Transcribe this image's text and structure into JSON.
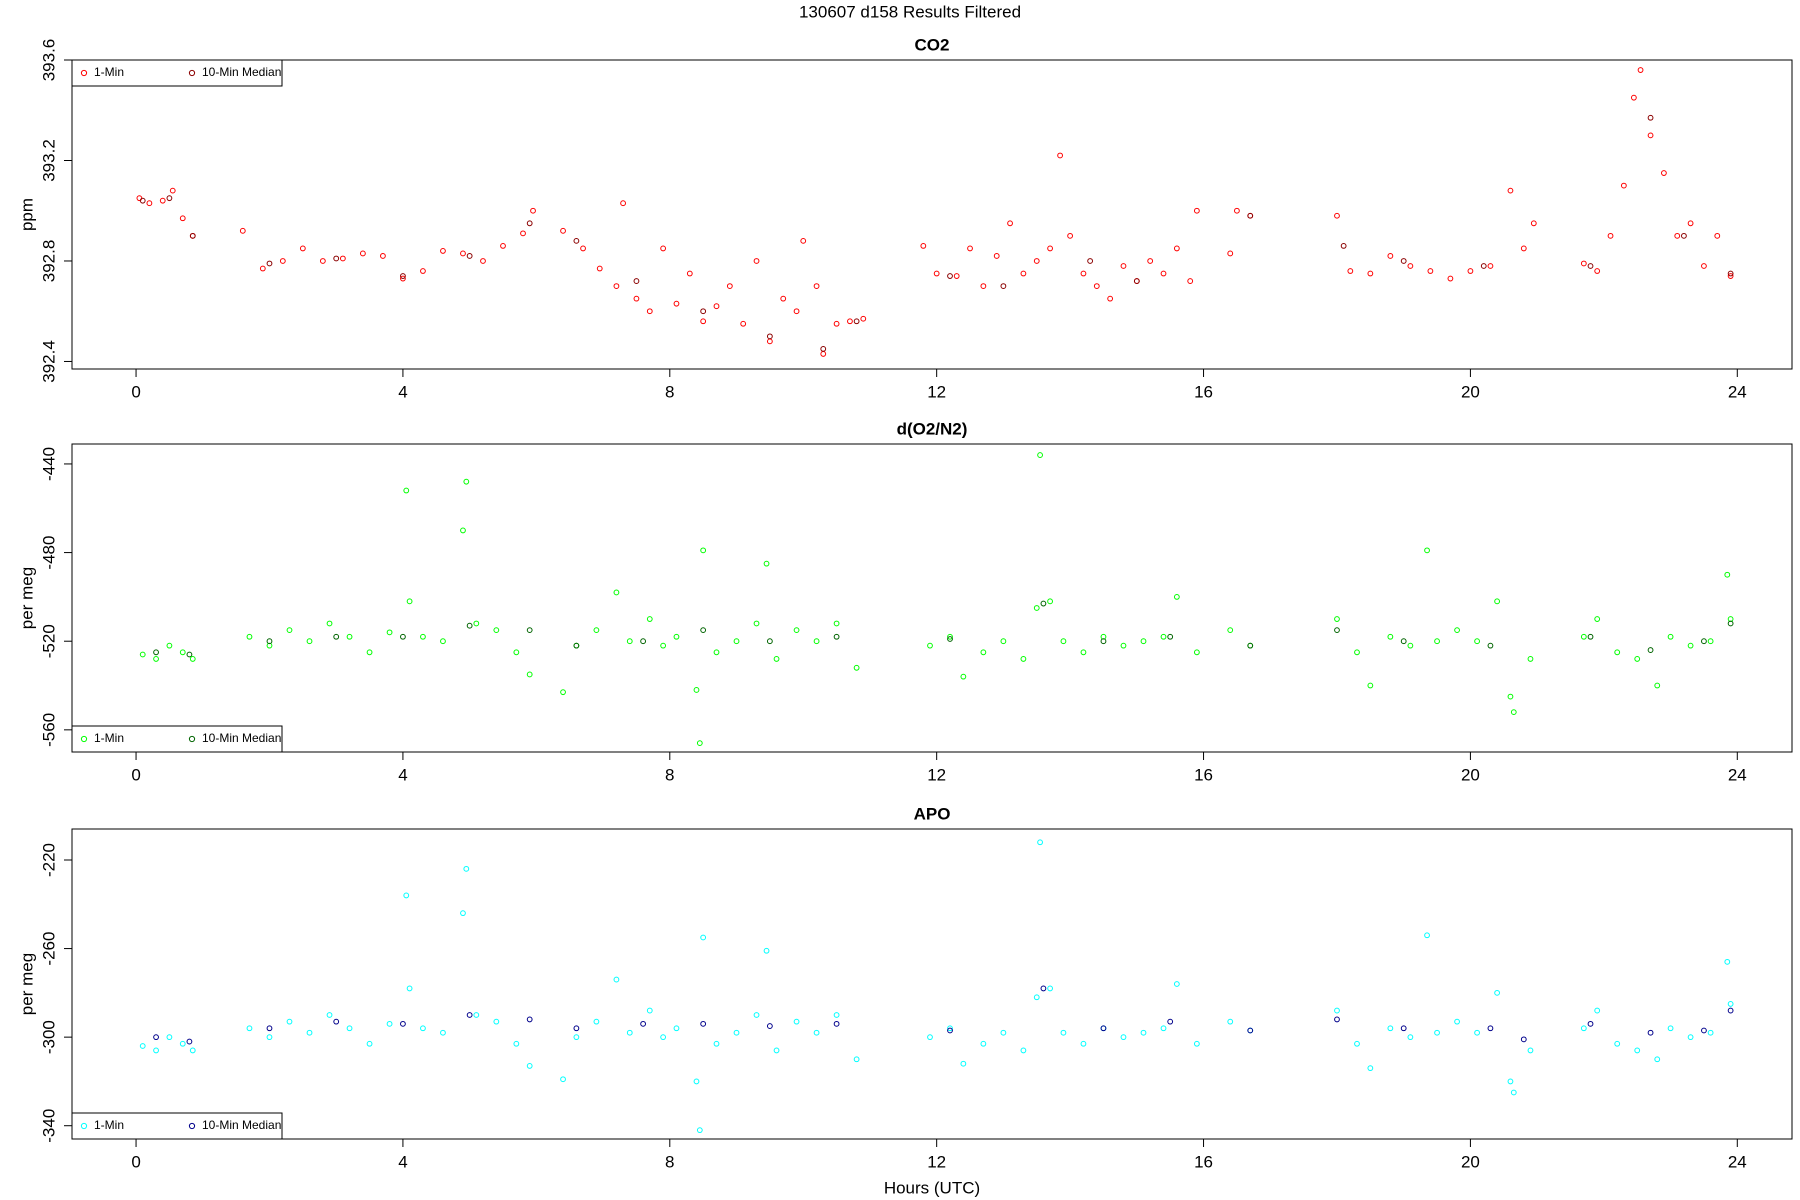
{
  "title": "130607   d158   Results Filtered",
  "chart_data": [
    {
      "type": "scatter",
      "title": "CO2",
      "ylabel": "ppm",
      "xlim": [
        -0.96,
        24.82
      ],
      "xticks": [
        0,
        4,
        8,
        12,
        16,
        20,
        24
      ],
      "ylim": [
        392.37,
        393.6
      ],
      "yticks": [
        392.4,
        392.8,
        393.2,
        393.6
      ],
      "legend": "topleft",
      "series": [
        {
          "name": "1-Min",
          "color": "#ff0000",
          "x": [
            0.05,
            0.2,
            0.4,
            0.55,
            0.7,
            0.85,
            1.6,
            1.9,
            2.2,
            2.5,
            2.8,
            3.1,
            3.4,
            3.7,
            4.0,
            4.3,
            4.6,
            4.9,
            5.2,
            5.5,
            5.8,
            5.95,
            6.4,
            6.7,
            6.95,
            7.2,
            7.3,
            7.5,
            7.7,
            7.9,
            8.1,
            8.3,
            8.5,
            8.7,
            8.9,
            9.1,
            9.3,
            9.5,
            9.7,
            9.9,
            10.0,
            10.2,
            10.3,
            10.5,
            10.7,
            10.9,
            11.8,
            12.0,
            12.3,
            12.5,
            12.7,
            12.9,
            13.1,
            13.3,
            13.5,
            13.7,
            13.85,
            14.0,
            14.2,
            14.4,
            14.6,
            14.8,
            15.0,
            15.2,
            15.4,
            15.6,
            15.8,
            15.9,
            16.4,
            16.5,
            16.7,
            18.0,
            18.2,
            18.5,
            18.8,
            19.1,
            19.4,
            19.7,
            20.0,
            20.3,
            20.6,
            20.8,
            20.95,
            21.7,
            21.9,
            22.1,
            22.3,
            22.45,
            22.55,
            22.7,
            22.9,
            23.1,
            23.3,
            23.5,
            23.7,
            23.9
          ],
          "values": [
            393.05,
            393.03,
            393.04,
            393.08,
            392.97,
            392.9,
            392.92,
            392.77,
            392.8,
            392.85,
            392.8,
            392.81,
            392.83,
            392.82,
            392.73,
            392.76,
            392.84,
            392.83,
            392.8,
            392.86,
            392.91,
            393.0,
            392.92,
            392.85,
            392.77,
            392.7,
            393.03,
            392.65,
            392.6,
            392.85,
            392.63,
            392.75,
            392.56,
            392.62,
            392.7,
            392.55,
            392.8,
            392.48,
            392.65,
            392.6,
            392.88,
            392.7,
            392.43,
            392.55,
            392.56,
            392.57,
            392.86,
            392.75,
            392.74,
            392.85,
            392.7,
            392.82,
            392.95,
            392.75,
            392.8,
            392.85,
            393.22,
            392.9,
            392.75,
            392.7,
            392.65,
            392.78,
            392.72,
            392.8,
            392.75,
            392.85,
            392.72,
            393.0,
            392.83,
            393.0,
            392.98,
            392.98,
            392.76,
            392.75,
            392.82,
            392.78,
            392.76,
            392.73,
            392.76,
            392.78,
            393.08,
            392.85,
            392.95,
            392.79,
            392.76,
            392.9,
            393.1,
            393.45,
            393.56,
            393.3,
            393.15,
            392.9,
            392.95,
            392.78,
            392.9,
            392.74
          ]
        },
        {
          "name": "10-Min Median",
          "color": "#8b0000",
          "x": [
            0.1,
            0.5,
            0.85,
            2,
            3,
            4,
            5,
            5.9,
            6.6,
            7.5,
            8.5,
            9.5,
            10.3,
            10.8,
            12.2,
            13,
            14.3,
            15,
            16.7,
            18.1,
            19,
            20.2,
            21.8,
            22.7,
            23.2,
            23.9
          ],
          "values": [
            393.04,
            393.05,
            392.9,
            392.79,
            392.81,
            392.74,
            392.82,
            392.95,
            392.88,
            392.72,
            392.6,
            392.5,
            392.45,
            392.56,
            392.74,
            392.7,
            392.8,
            392.72,
            392.98,
            392.86,
            392.8,
            392.78,
            392.78,
            393.37,
            392.9,
            392.75
          ]
        }
      ]
    },
    {
      "type": "scatter",
      "title": "d(O2/N2)",
      "ylabel": "per meg",
      "xlim": [
        -0.96,
        24.82
      ],
      "xticks": [
        0,
        4,
        8,
        12,
        16,
        20,
        24
      ],
      "ylim": [
        -570,
        -431
      ],
      "yticks": [
        -560,
        -520,
        -480,
        -440
      ],
      "legend": "bottomleft",
      "series": [
        {
          "name": "1-Min",
          "color": "#00ff00",
          "x": [
            0.1,
            0.3,
            0.5,
            0.7,
            0.85,
            1.7,
            2.0,
            2.3,
            2.6,
            2.9,
            3.2,
            3.5,
            3.8,
            4.05,
            4.1,
            4.3,
            4.6,
            4.9,
            4.95,
            5.1,
            5.4,
            5.7,
            5.9,
            6.4,
            6.6,
            6.9,
            7.2,
            7.4,
            7.7,
            7.9,
            8.1,
            8.4,
            8.45,
            8.5,
            8.7,
            9.0,
            9.3,
            9.45,
            9.6,
            9.9,
            10.2,
            10.5,
            10.8,
            11.9,
            12.2,
            12.4,
            12.7,
            13.0,
            13.3,
            13.5,
            13.55,
            13.7,
            13.9,
            14.2,
            14.5,
            14.8,
            15.1,
            15.4,
            15.6,
            15.9,
            16.4,
            16.7,
            18.0,
            18.3,
            18.5,
            18.8,
            19.1,
            19.35,
            19.5,
            19.8,
            20.1,
            20.4,
            20.6,
            20.65,
            20.9,
            21.7,
            21.9,
            22.2,
            22.5,
            22.8,
            23.0,
            23.3,
            23.6,
            23.85,
            23.9
          ],
          "values": [
            -526,
            -528,
            -522,
            -525,
            -528,
            -518,
            -522,
            -515,
            -520,
            -512,
            -518,
            -525,
            -516,
            -452,
            -502,
            -518,
            -520,
            -470,
            -448,
            -512,
            -515,
            -525,
            -535,
            -543,
            -522,
            -515,
            -498,
            -520,
            -510,
            -522,
            -518,
            -542,
            -566,
            -479,
            -525,
            -520,
            -512,
            -485,
            -528,
            -515,
            -520,
            -512,
            -532,
            -522,
            -518,
            -536,
            -525,
            -520,
            -528,
            -505,
            -436,
            -502,
            -520,
            -525,
            -518,
            -522,
            -520,
            -518,
            -500,
            -525,
            -515,
            -522,
            -510,
            -525,
            -540,
            -518,
            -522,
            -479,
            -520,
            -515,
            -520,
            -502,
            -545,
            -552,
            -528,
            -518,
            -510,
            -525,
            -528,
            -540,
            -518,
            -522,
            -520,
            -490,
            -510
          ]
        },
        {
          "name": "10-Min Median",
          "color": "#006400",
          "x": [
            0.3,
            0.8,
            2,
            3,
            4,
            5,
            5.9,
            6.6,
            7.6,
            8.5,
            9.5,
            10.5,
            12.2,
            13.6,
            14.5,
            15.5,
            16.7,
            18,
            19,
            20.3,
            21.8,
            22.7,
            23.5,
            23.9
          ],
          "values": [
            -525,
            -526,
            -520,
            -518,
            -518,
            -513,
            -515,
            -522,
            -520,
            -515,
            -520,
            -518,
            -519,
            -503,
            -520,
            -518,
            -522,
            -515,
            -520,
            -522,
            -518,
            -524,
            -520,
            -512
          ]
        }
      ]
    },
    {
      "type": "scatter",
      "title": "APO",
      "ylabel": "per meg",
      "xlabel": "Hours (UTC)",
      "xlim": [
        -0.96,
        24.82
      ],
      "xticks": [
        0,
        4,
        8,
        12,
        16,
        20,
        24
      ],
      "ylim": [
        -346,
        -206
      ],
      "yticks": [
        -340,
        -300,
        -260,
        -220
      ],
      "legend": "bottomleft",
      "series": [
        {
          "name": "1-Min",
          "color": "#00ffff",
          "x": [
            0.1,
            0.3,
            0.5,
            0.7,
            0.85,
            1.7,
            2.0,
            2.3,
            2.6,
            2.9,
            3.2,
            3.5,
            3.8,
            4.05,
            4.1,
            4.3,
            4.6,
            4.9,
            4.95,
            5.1,
            5.4,
            5.7,
            5.9,
            6.4,
            6.6,
            6.9,
            7.2,
            7.4,
            7.7,
            7.9,
            8.1,
            8.4,
            8.45,
            8.5,
            8.7,
            9.0,
            9.3,
            9.45,
            9.6,
            9.9,
            10.2,
            10.5,
            10.8,
            11.9,
            12.2,
            12.4,
            12.7,
            13.0,
            13.3,
            13.5,
            13.55,
            13.7,
            13.9,
            14.2,
            14.5,
            14.8,
            15.1,
            15.4,
            15.6,
            15.9,
            16.4,
            16.7,
            18.0,
            18.3,
            18.5,
            18.8,
            19.1,
            19.35,
            19.5,
            19.8,
            20.1,
            20.4,
            20.6,
            20.65,
            20.9,
            21.7,
            21.9,
            22.2,
            22.5,
            22.8,
            23.0,
            23.3,
            23.6,
            23.85,
            23.9
          ],
          "values": [
            -304,
            -306,
            -300,
            -303,
            -306,
            -296,
            -300,
            -293,
            -298,
            -290,
            -296,
            -303,
            -294,
            -236,
            -278,
            -296,
            -298,
            -244,
            -224,
            -290,
            -293,
            -303,
            -313,
            -319,
            -300,
            -293,
            -274,
            -298,
            -288,
            -300,
            -296,
            -320,
            -342,
            -255,
            -303,
            -298,
            -290,
            -261,
            -306,
            -293,
            -298,
            -290,
            -310,
            -300,
            -296,
            -312,
            -303,
            -298,
            -306,
            -282,
            -212,
            -278,
            -298,
            -303,
            -296,
            -300,
            -298,
            -296,
            -276,
            -303,
            -293,
            -297,
            -288,
            -303,
            -314,
            -296,
            -300,
            -254,
            -298,
            -293,
            -298,
            -280,
            -320,
            -325,
            -306,
            -296,
            -288,
            -303,
            -306,
            -310,
            -296,
            -300,
            -298,
            -266,
            -285
          ]
        },
        {
          "name": "10-Min Median",
          "color": "#00008b",
          "x": [
            0.3,
            0.8,
            2,
            3,
            4,
            5,
            5.9,
            6.6,
            7.6,
            8.5,
            9.5,
            10.5,
            12.2,
            13.6,
            14.5,
            15.5,
            16.7,
            18,
            19,
            20.3,
            20.8,
            21.8,
            22.7,
            23.5,
            23.9
          ],
          "values": [
            -300,
            -302,
            -296,
            -293,
            -294,
            -290,
            -292,
            -296,
            -294,
            -294,
            -295,
            -294,
            -297,
            -278,
            -296,
            -293,
            -297,
            -292,
            -296,
            -296,
            -301,
            -294,
            -298,
            -297,
            -288
          ]
        }
      ]
    }
  ]
}
